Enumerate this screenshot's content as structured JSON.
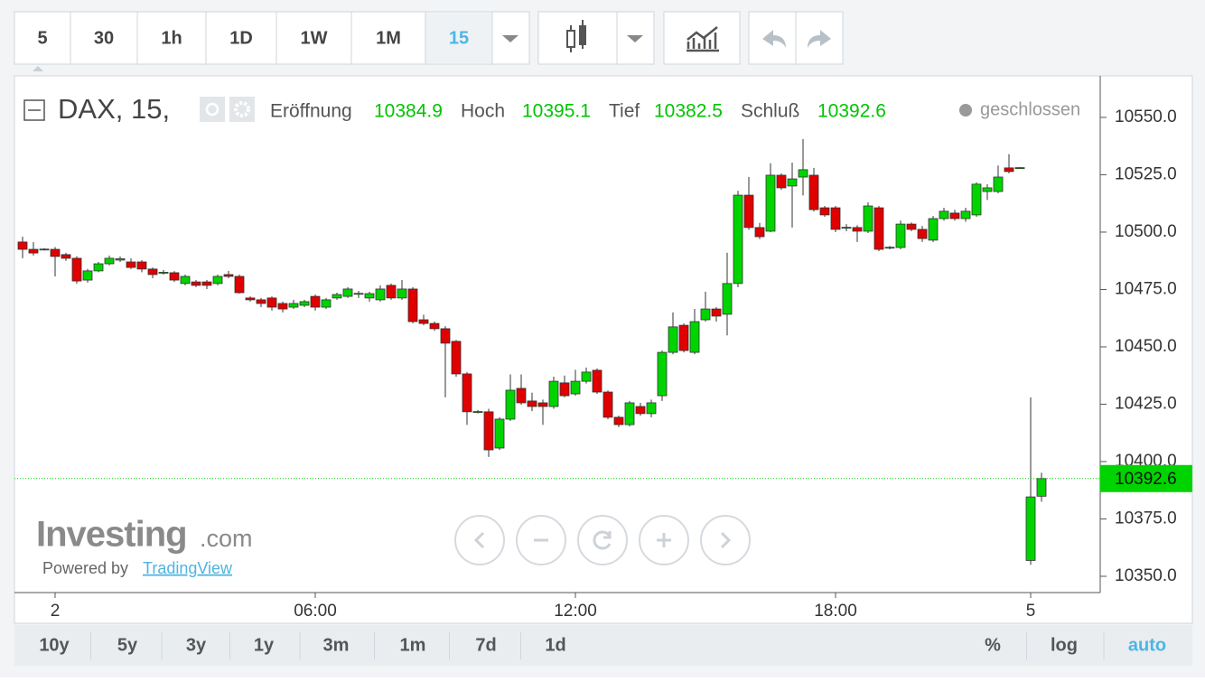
{
  "toolbar": {
    "intervals": [
      "5",
      "30",
      "1h",
      "1D",
      "1W",
      "1M"
    ],
    "active_interval": "15"
  },
  "chart_data": {
    "type": "candlestick",
    "title": "DAX, 15,",
    "legend_labels": [
      "Eröffnung",
      "Hoch",
      "Tief",
      "Schluß"
    ],
    "status": "geschlossen",
    "up_color": "#00d400",
    "down_color": "#e00000",
    "categories": [
      null,
      null,
      null,
      "2",
      null,
      null,
      null,
      null,
      null,
      null,
      null,
      null,
      null,
      null,
      null,
      null,
      null,
      null,
      null,
      null,
      null,
      null,
      null,
      null,
      null,
      null,
      null,
      "06:00",
      null,
      null,
      null,
      null,
      null,
      null,
      null,
      null,
      null,
      null,
      null,
      null,
      null,
      null,
      null,
      null,
      null,
      null,
      null,
      null,
      null,
      null,
      null,
      "12:00",
      null,
      null,
      null,
      null,
      null,
      null,
      null,
      null,
      null,
      null,
      null,
      null,
      null,
      null,
      null,
      null,
      null,
      null,
      null,
      null,
      null,
      null,
      null,
      "18:00",
      null,
      null,
      null,
      null,
      null,
      null,
      null,
      null,
      null,
      null,
      null,
      null,
      null,
      null,
      null,
      null,
      null,
      "5",
      null
    ],
    "open": [
      10495.7,
      10492.5,
      10492.4,
      10492.5,
      10490.2,
      10488.6,
      10479.1,
      10483.1,
      10486.2,
      10487.8,
      10487,
      10487,
      10483.9,
      10482.3,
      10482.3,
      10477.6,
      10478.3,
      10478.3,
      10477.6,
      10481.5,
      10480.7,
      10471.3,
      10470.5,
      10471.3,
      10468.9,
      10467.3,
      10468.1,
      10472,
      10467.3,
      10471.3,
      10472,
      10473.1,
      10471.3,
      10470.5,
      10476.8,
      10471.3,
      10475.2,
      10461.8,
      10460.2,
      10457.9,
      10452.4,
      10438.2,
      10421.6,
      10421.7,
      10405.9,
      10418.5,
      10431.9,
      10426.4,
      10425.6,
      10424,
      10434.3,
      10429.5,
      10435,
      10439.8,
      10430.3,
      10419.3,
      10416.1,
      10424,
      10420.9,
      10428.7,
      10447.6,
      10459.4,
      10447.6,
      10461.8,
      10466.5,
      10464.2,
      10477.6,
      10516.1,
      10502,
      10500.4,
      10524.8,
      10520.1,
      10524,
      10524.8,
      10510.6,
      10510.6,
      10501.9,
      10502,
      10500.4,
      10510.6,
      10493.2,
      10493.3,
      10503.5,
      10501.2,
      10496.5,
      10505.9,
      10508.3,
      10505.9,
      10507.5,
      10517.7,
      10517.7,
      10528,
      10527.9,
      10356.9,
      10384.9
    ],
    "high": [
      10498,
      10495.7,
      10493,
      10493.5,
      10491,
      10489.5,
      10484,
      10487,
      10489.8,
      10489.4,
      10488.6,
      10487.8,
      10484.6,
      10483.5,
      10483,
      10481.5,
      10479.1,
      10479.1,
      10481.5,
      10483.1,
      10481.5,
      10472,
      10471.3,
      10472,
      10469.7,
      10470.5,
      10470.5,
      10472.8,
      10471.3,
      10473.6,
      10476,
      10474.4,
      10474,
      10476.8,
      10477.6,
      10479.1,
      10476,
      10464,
      10461,
      10459,
      10453,
      10439,
      10422.5,
      10423,
      10419.3,
      10438,
      10438,
      10430,
      10427,
      10437,
      10437.5,
      10440,
      10441,
      10440.6,
      10431,
      10420,
      10426.4,
      10425.6,
      10427,
      10448.4,
      10465,
      10460.2,
      10466.5,
      10474,
      10467.3,
      10491,
      10518,
      10524,
      10504,
      10530,
      10525.6,
      10530.3,
      10540.6,
      10528,
      10511.4,
      10511.4,
      10503.5,
      10503,
      10513,
      10511.4,
      10494,
      10505,
      10504.2,
      10502.7,
      10507,
      10510.6,
      10509.8,
      10510.6,
      10521.7,
      10520.9,
      10529,
      10534,
      10528.3,
      10428,
      10395.1
    ],
    "low": [
      10488.6,
      10489.8,
      10492,
      10480.7,
      10487.5,
      10477.5,
      10478,
      10482.5,
      10485.5,
      10487,
      10483.9,
      10482.5,
      10479.9,
      10481.5,
      10478.3,
      10476.8,
      10476,
      10475.2,
      10476.8,
      10479.9,
      10473.2,
      10469.7,
      10467.3,
      10465.8,
      10465,
      10466.5,
      10467.3,
      10465.8,
      10466.5,
      10470.5,
      10471.3,
      10471.3,
      10469.7,
      10469.7,
      10470.5,
      10470.5,
      10460.2,
      10459.4,
      10457,
      10428,
      10437,
      10416,
      10421,
      10402,
      10405,
      10417.7,
      10424.8,
      10422,
      10416,
      10423,
      10428,
      10428.7,
      10434,
      10429.5,
      10418.5,
      10415,
      10415.3,
      10420,
      10419.3,
      10426.4,
      10446.8,
      10447.6,
      10446.8,
      10461,
      10461,
      10455,
      10476,
      10501,
      10497,
      10500,
      10518.5,
      10502,
      10516,
      10509,
      10506.7,
      10500,
      10500.4,
      10495.7,
      10499.6,
      10491.7,
      10492.5,
      10492.5,
      10500.4,
      10495.7,
      10495.7,
      10505,
      10505,
      10504.5,
      10506.7,
      10514,
      10516.9,
      10525.6,
      10527.7,
      10355,
      10382.5
    ],
    "close": [
      10492.5,
      10490.9,
      10492.6,
      10489.4,
      10488.6,
      10478.7,
      10483.1,
      10486.2,
      10488.6,
      10488.4,
      10484.6,
      10483.9,
      10481.5,
      10482.5,
      10479.1,
      10480.7,
      10476.8,
      10476.8,
      10480.7,
      10480.7,
      10473.6,
      10470.5,
      10468.9,
      10467.3,
      10466.5,
      10468.9,
      10469.7,
      10467.3,
      10470.5,
      10472.8,
      10475.2,
      10473.3,
      10473.2,
      10475.2,
      10471.3,
      10475.2,
      10461,
      10460.2,
      10457.9,
      10451.6,
      10438.2,
      10421.7,
      10421.8,
      10405.1,
      10418.5,
      10431.1,
      10425.6,
      10424,
      10424,
      10435,
      10428.7,
      10435,
      10439,
      10430.3,
      10419.3,
      10416.1,
      10425.6,
      10420.9,
      10425.6,
      10447.6,
      10458.7,
      10448.4,
      10461,
      10466.5,
      10463.4,
      10477.6,
      10516.1,
      10502,
      10498,
      10524.8,
      10519.3,
      10523.2,
      10527.2,
      10509.8,
      10507.5,
      10501.2,
      10502.1,
      10500.4,
      10511.4,
      10492.5,
      10493.4,
      10503.5,
      10501.2,
      10497.2,
      10505.9,
      10509.1,
      10505.9,
      10509.1,
      10520.9,
      10519.3,
      10524,
      10526.4,
      10528.1,
      10384.6,
      10392.6
    ],
    "ylim": [
      10343.3,
      10567.7
    ],
    "yticks": [
      {
        "value": 10350,
        "label": "10350.0"
      },
      {
        "value": 10375,
        "label": "10375.0"
      },
      {
        "value": 10400,
        "label": "10400.0"
      },
      {
        "value": 10425,
        "label": "10425.0"
      },
      {
        "value": 10450,
        "label": "10450.0"
      },
      {
        "value": 10475,
        "label": "10475.0"
      },
      {
        "value": 10500,
        "label": "10500.0"
      },
      {
        "value": 10525,
        "label": "10525.0"
      },
      {
        "value": 10550,
        "label": "10550.0"
      }
    ],
    "grid": false
  },
  "watermark": {
    "brand": "Investing",
    "brand_suffix": ".com",
    "powered_by": "Powered by",
    "link": "TradingView"
  },
  "range_bar": {
    "ranges": [
      "10y",
      "5y",
      "3y",
      "1y",
      "3m",
      "1m",
      "7d",
      "1d"
    ],
    "options": [
      "%",
      "log",
      "auto"
    ]
  }
}
